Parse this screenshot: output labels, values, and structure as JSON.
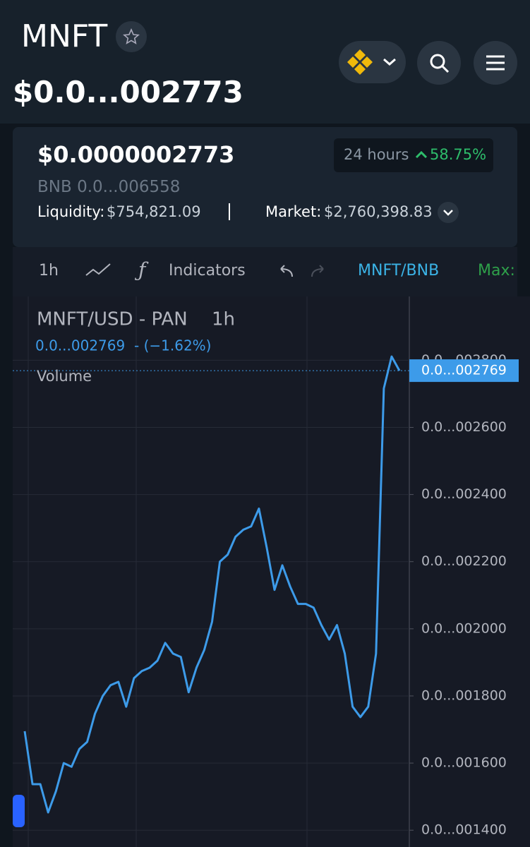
{
  "header": {
    "title": "MNFT",
    "price": "$0.0...002773"
  },
  "card": {
    "price": "$0.0000002773",
    "bnb_price": "BNB 0.0...006558",
    "liquidity_label": "Liquidity:",
    "liquidity": "$754,821.09",
    "market_label": "Market:",
    "market": "$2,760,398.83",
    "period": "24 hours",
    "change": "58.75%"
  },
  "toolbar": {
    "interval": "1h",
    "indicators": "Indicators",
    "pair": "MNFT/BNB",
    "max": "Max:"
  },
  "chart_data": {
    "type": "line",
    "title": "MNFT/USD - PAN",
    "interval": "1h",
    "change": "- (−1.62%)",
    "volume_label": "Volume",
    "last_value": {
      "value": 2.769e-07,
      "label": "0.0...002769"
    },
    "color": "#3d9be9",
    "grid": true,
    "ylim": [
      1.35e-07,
      2.99e-07
    ],
    "yticks": [
      {
        "value": 1.4e-07,
        "label": "0.0...001400"
      },
      {
        "value": 1.6e-07,
        "label": "0.0...001600"
      },
      {
        "value": 1.8e-07,
        "label": "0.0...001800"
      },
      {
        "value": 2e-07,
        "label": "0.0...002000"
      },
      {
        "value": 2.2e-07,
        "label": "0.0...002200"
      },
      {
        "value": 2.4e-07,
        "label": "0.0...002400"
      },
      {
        "value": 2.6e-07,
        "label": "0.0...002600"
      },
      {
        "value": 2.8e-07,
        "label": "0.0...002800"
      }
    ],
    "values": [
      1.695e-07,
      1.537e-07,
      1.537e-07,
      1.453e-07,
      1.516e-07,
      1.6e-07,
      1.589e-07,
      1.642e-07,
      1.663e-07,
      1.747e-07,
      1.8e-07,
      1.832e-07,
      1.842e-07,
      1.768e-07,
      1.853e-07,
      1.874e-07,
      1.884e-07,
      1.905e-07,
      1.958e-07,
      1.926e-07,
      1.916e-07,
      1.811e-07,
      1.884e-07,
      1.937e-07,
      2.021e-07,
      2.2e-07,
      2.221e-07,
      2.274e-07,
      2.295e-07,
      2.305e-07,
      2.358e-07,
      2.242e-07,
      2.116e-07,
      2.189e-07,
      2.126e-07,
      2.074e-07,
      2.074e-07,
      2.063e-07,
      2.011e-07,
      1.968e-07,
      2.011e-07,
      1.926e-07,
      1.768e-07,
      1.737e-07,
      1.768e-07,
      1.926e-07,
      2.716e-07,
      2.811e-07,
      2.769e-07
    ]
  }
}
